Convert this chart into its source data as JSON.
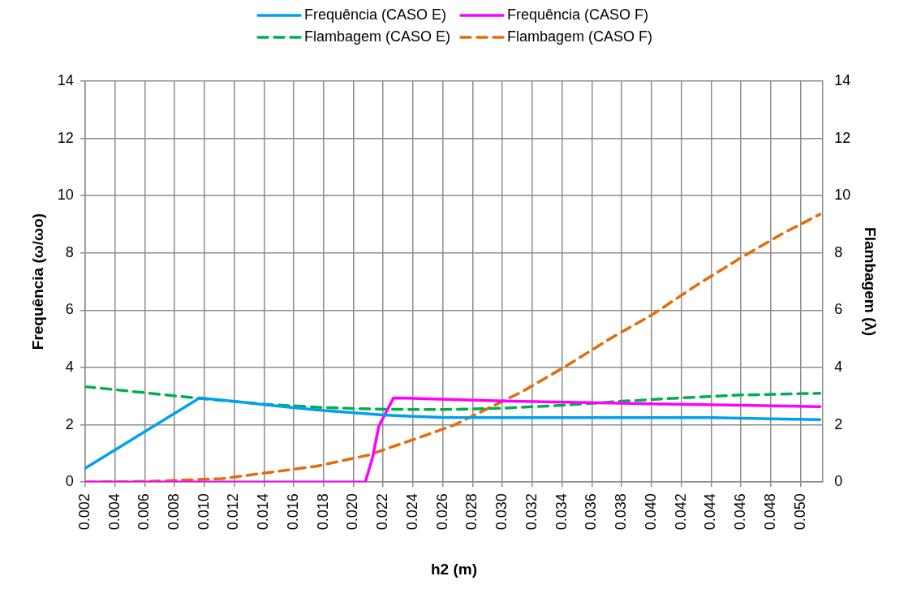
{
  "chart_data": {
    "type": "line",
    "xlabel": "h2 (m)",
    "ylabel": "Frequência (ω/ωo)",
    "y2label": "Flambagem (λ)",
    "xlim": [
      0.002,
      0.0515
    ],
    "xticks": [
      0.002,
      0.004,
      0.006,
      0.008,
      {
        "value": 0.01,
        "label": "0.010"
      },
      0.012,
      0.014,
      0.016,
      0.018,
      {
        "value": 0.02,
        "label": "0.020"
      },
      0.022,
      0.024,
      0.026,
      0.028,
      {
        "value": 0.03,
        "label": "0.030"
      },
      0.032,
      0.034,
      0.036,
      0.038,
      {
        "value": 0.04,
        "label": "0.040"
      },
      0.042,
      0.044,
      0.046,
      0.048,
      {
        "value": 0.05,
        "label": "0.050"
      }
    ],
    "ylim": [
      0,
      14
    ],
    "yticks": [
      0,
      2,
      4,
      6,
      8,
      10,
      12,
      14
    ],
    "y2lim": [
      0,
      14
    ],
    "y2ticks": [
      0,
      2,
      4,
      6,
      8,
      10,
      12,
      14
    ],
    "grid": true,
    "legend": "top",
    "marker": "none",
    "series": [
      {
        "name": "Frequência (CASO E)",
        "color": "#00a0f0",
        "line_style": "solid",
        "x": [
          0.002,
          0.0097,
          0.012,
          0.014,
          0.016,
          0.018,
          0.02,
          0.022,
          0.024,
          0.026,
          0.03,
          0.04,
          0.044,
          0.048,
          0.0513
        ],
        "values": [
          0.48,
          2.94,
          2.82,
          2.7,
          2.6,
          2.5,
          2.42,
          2.34,
          2.29,
          2.26,
          2.25,
          2.25,
          2.25,
          2.21,
          2.18
        ]
      },
      {
        "name": "Frequência (CASO F)",
        "color": "#ff00ff",
        "line_style": "solid",
        "x": [
          0.002,
          0.0208,
          0.0213,
          0.0217,
          0.0227,
          0.03,
          0.04,
          0.046,
          0.0513
        ],
        "values": [
          0,
          0,
          0.88,
          1.94,
          2.94,
          2.83,
          2.73,
          2.68,
          2.63
        ]
      },
      {
        "name": "Flambagem (CASO E)",
        "color": "#00b050",
        "line_style": "dashed",
        "x": [
          0.002,
          0.006,
          0.0097,
          0.014,
          0.018,
          0.022,
          0.026,
          0.03,
          0.034,
          0.038,
          0.042,
          0.046,
          0.0513
        ],
        "values": [
          3.33,
          3.12,
          2.92,
          2.72,
          2.6,
          2.54,
          2.53,
          2.58,
          2.68,
          2.82,
          2.94,
          3.04,
          3.1
        ]
      },
      {
        "name": "Flambagem (CASO F)",
        "color": "#e46c0a",
        "line_style": "dashed",
        "x": [
          0.002,
          0.006,
          0.0112,
          0.0175,
          0.021,
          0.0245,
          0.0268,
          0.0313,
          0.0343,
          0.0372,
          0.0401,
          0.0431,
          0.0459,
          0.0487,
          0.0513
        ],
        "values": [
          0,
          0.02,
          0.12,
          0.55,
          0.94,
          1.57,
          2.0,
          3.15,
          4.06,
          5.0,
          5.86,
          6.9,
          7.8,
          8.65,
          9.35
        ]
      }
    ]
  }
}
